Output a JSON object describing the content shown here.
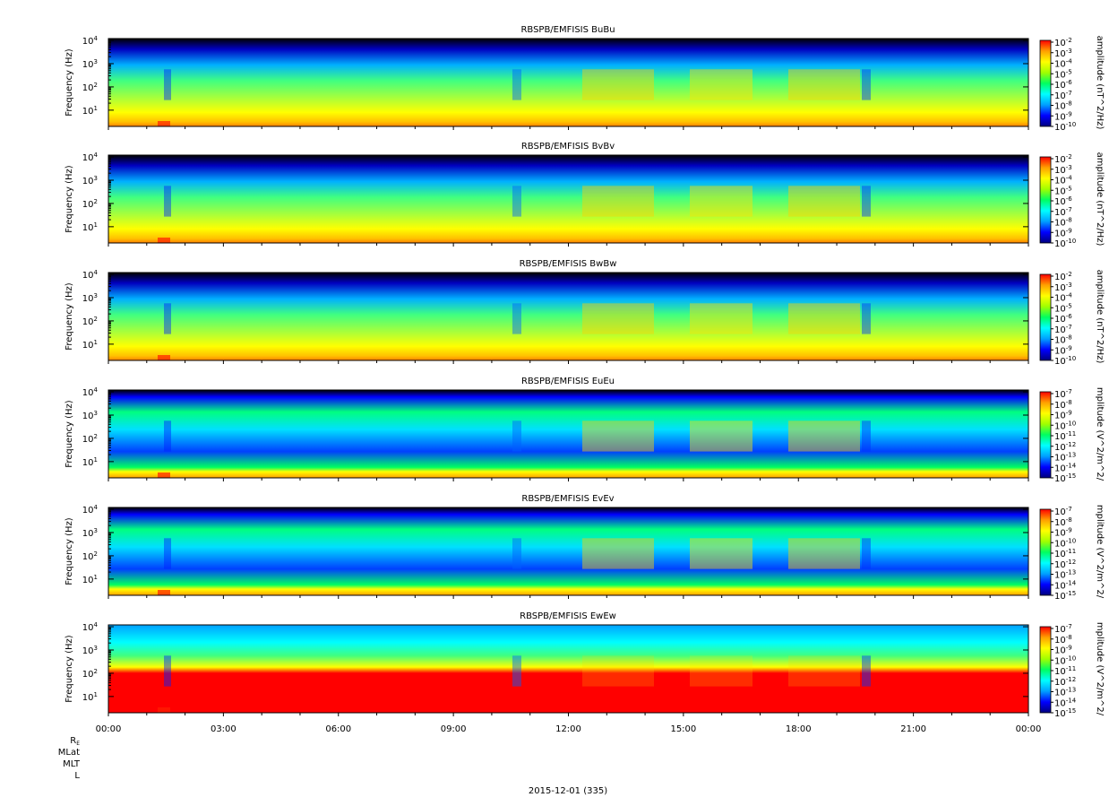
{
  "chart_data": [
    {
      "type": "heatmap",
      "title": "RBSPB/EMFISIS  BuBu",
      "ylabel": "Frequency (Hz)",
      "y_scale": "log",
      "ylim": [
        2,
        12000
      ],
      "y_ticks": [
        {
          "base": "10",
          "exp": "1"
        },
        {
          "base": "10",
          "exp": "2"
        },
        {
          "base": "10",
          "exp": "3"
        },
        {
          "base": "10",
          "exp": "4"
        }
      ],
      "colorbar": {
        "label": "amplitude (nT^2/Hz)",
        "scale": "log",
        "ticks": [
          {
            "base": "10",
            "exp": "-2"
          },
          {
            "base": "10",
            "exp": "-3"
          },
          {
            "base": "10",
            "exp": "-4"
          },
          {
            "base": "10",
            "exp": "-5"
          },
          {
            "base": "10",
            "exp": "-6"
          },
          {
            "base": "10",
            "exp": "-7"
          },
          {
            "base": "10",
            "exp": "-8"
          },
          {
            "base": "10",
            "exp": "-9"
          },
          {
            "base": "10",
            "exp": "-10"
          }
        ]
      }
    },
    {
      "type": "heatmap",
      "title": "RBSPB/EMFISIS  BvBv",
      "ylabel": "Frequency (Hz)",
      "y_scale": "log",
      "ylim": [
        2,
        12000
      ],
      "y_ticks": [
        {
          "base": "10",
          "exp": "1"
        },
        {
          "base": "10",
          "exp": "2"
        },
        {
          "base": "10",
          "exp": "3"
        },
        {
          "base": "10",
          "exp": "4"
        }
      ],
      "colorbar": {
        "label": "amplitude (nT^2/Hz)",
        "scale": "log",
        "ticks": [
          {
            "base": "10",
            "exp": "-2"
          },
          {
            "base": "10",
            "exp": "-3"
          },
          {
            "base": "10",
            "exp": "-4"
          },
          {
            "base": "10",
            "exp": "-5"
          },
          {
            "base": "10",
            "exp": "-6"
          },
          {
            "base": "10",
            "exp": "-7"
          },
          {
            "base": "10",
            "exp": "-8"
          },
          {
            "base": "10",
            "exp": "-9"
          },
          {
            "base": "10",
            "exp": "-10"
          }
        ]
      }
    },
    {
      "type": "heatmap",
      "title": "RBSPB/EMFISIS  BwBw",
      "ylabel": "Frequency (Hz)",
      "y_scale": "log",
      "ylim": [
        2,
        12000
      ],
      "y_ticks": [
        {
          "base": "10",
          "exp": "1"
        },
        {
          "base": "10",
          "exp": "2"
        },
        {
          "base": "10",
          "exp": "3"
        },
        {
          "base": "10",
          "exp": "4"
        }
      ],
      "colorbar": {
        "label": "amplitude (nT^2/Hz)",
        "scale": "log",
        "ticks": [
          {
            "base": "10",
            "exp": "-2"
          },
          {
            "base": "10",
            "exp": "-3"
          },
          {
            "base": "10",
            "exp": "-4"
          },
          {
            "base": "10",
            "exp": "-5"
          },
          {
            "base": "10",
            "exp": "-6"
          },
          {
            "base": "10",
            "exp": "-7"
          },
          {
            "base": "10",
            "exp": "-8"
          },
          {
            "base": "10",
            "exp": "-9"
          },
          {
            "base": "10",
            "exp": "-10"
          }
        ]
      }
    },
    {
      "type": "heatmap",
      "title": "RBSPB/EMFISIS  EuEu",
      "ylabel": "Frequency (Hz)",
      "y_scale": "log",
      "ylim": [
        2,
        12000
      ],
      "y_ticks": [
        {
          "base": "10",
          "exp": "1"
        },
        {
          "base": "10",
          "exp": "2"
        },
        {
          "base": "10",
          "exp": "3"
        },
        {
          "base": "10",
          "exp": "4"
        }
      ],
      "colorbar": {
        "label": "mplitude (V^2/m^2/",
        "scale": "log",
        "ticks": [
          {
            "base": "10",
            "exp": "-7"
          },
          {
            "base": "10",
            "exp": "-8"
          },
          {
            "base": "10",
            "exp": "-9"
          },
          {
            "base": "10",
            "exp": "-10"
          },
          {
            "base": "10",
            "exp": "-11"
          },
          {
            "base": "10",
            "exp": "-12"
          },
          {
            "base": "10",
            "exp": "-13"
          },
          {
            "base": "10",
            "exp": "-14"
          },
          {
            "base": "10",
            "exp": "-15"
          }
        ]
      }
    },
    {
      "type": "heatmap",
      "title": "RBSPB/EMFISIS  EvEv",
      "ylabel": "Frequency (Hz)",
      "y_scale": "log",
      "ylim": [
        2,
        12000
      ],
      "y_ticks": [
        {
          "base": "10",
          "exp": "1"
        },
        {
          "base": "10",
          "exp": "2"
        },
        {
          "base": "10",
          "exp": "3"
        },
        {
          "base": "10",
          "exp": "4"
        }
      ],
      "colorbar": {
        "label": "mplitude (V^2/m^2/",
        "scale": "log",
        "ticks": [
          {
            "base": "10",
            "exp": "-7"
          },
          {
            "base": "10",
            "exp": "-8"
          },
          {
            "base": "10",
            "exp": "-9"
          },
          {
            "base": "10",
            "exp": "-10"
          },
          {
            "base": "10",
            "exp": "-11"
          },
          {
            "base": "10",
            "exp": "-12"
          },
          {
            "base": "10",
            "exp": "-13"
          },
          {
            "base": "10",
            "exp": "-14"
          },
          {
            "base": "10",
            "exp": "-15"
          }
        ]
      }
    },
    {
      "type": "heatmap",
      "title": "RBSPB/EMFISIS  EwEw",
      "ylabel": "Frequency (Hz)",
      "y_scale": "log",
      "ylim": [
        2,
        12000
      ],
      "y_ticks": [
        {
          "base": "10",
          "exp": "1"
        },
        {
          "base": "10",
          "exp": "2"
        },
        {
          "base": "10",
          "exp": "3"
        },
        {
          "base": "10",
          "exp": "4"
        }
      ],
      "colorbar": {
        "label": "mplitude (V^2/m^2/",
        "scale": "log",
        "ticks": [
          {
            "base": "10",
            "exp": "-7"
          },
          {
            "base": "10",
            "exp": "-8"
          },
          {
            "base": "10",
            "exp": "-9"
          },
          {
            "base": "10",
            "exp": "-10"
          },
          {
            "base": "10",
            "exp": "-11"
          },
          {
            "base": "10",
            "exp": "-12"
          },
          {
            "base": "10",
            "exp": "-13"
          },
          {
            "base": "10",
            "exp": "-14"
          },
          {
            "base": "10",
            "exp": "-15"
          }
        ]
      }
    }
  ],
  "x_axis": {
    "ticks": [
      "00:00",
      "03:00",
      "06:00",
      "09:00",
      "12:00",
      "15:00",
      "18:00",
      "21:00",
      "00:00"
    ],
    "minor_per_major": 3
  },
  "ephemeris_labels": [
    {
      "base": "R",
      "sub": "E"
    },
    {
      "base": "MLat",
      "sub": ""
    },
    {
      "base": "MLT",
      "sub": ""
    },
    {
      "base": "L",
      "sub": ""
    }
  ],
  "date_label": "2015-12-01 (335)",
  "colors": {
    "background": "#ffffff",
    "axis": "#000000",
    "spectrum_low": "#000000",
    "spectrum_scale": [
      "#00007f",
      "#0000ff",
      "#00a0ff",
      "#00ffff",
      "#00ff60",
      "#a0ff00",
      "#ffff00",
      "#ffa000",
      "#ff0000"
    ]
  }
}
